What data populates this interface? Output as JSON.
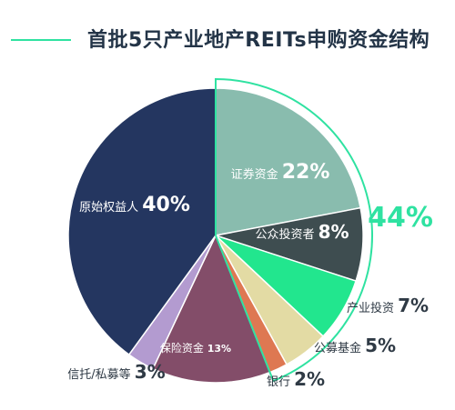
{
  "chart_data": {
    "type": "pie",
    "title": "首批5只产业地产REITs申购资金结构",
    "series": [
      {
        "label": "证券资金",
        "value_text": "22%",
        "value": 22,
        "color": "#89bcae",
        "label_color": "#ffffff"
      },
      {
        "label": "公众投资者",
        "value_text": "8%",
        "value": 8,
        "color": "#3e4d50",
        "label_color": "#ffffff"
      },
      {
        "label": "产业投资",
        "value_text": "7%",
        "value": 7,
        "color": "#22e68e",
        "label_color": "#2f3a45"
      },
      {
        "label": "公募基金",
        "value_text": "5%",
        "value": 5,
        "color": "#e3dba4",
        "label_color": "#2f3a45"
      },
      {
        "label": "银行",
        "value_text": "2%",
        "value": 2,
        "color": "#de7852",
        "label_color": "#2f3a45"
      },
      {
        "label": "保险资金",
        "value_text": "13%",
        "value": 13,
        "color": "#834d69",
        "label_color": "#ffffff"
      },
      {
        "label": "信托/私募等",
        "value_text": "3%",
        "value": 3,
        "color": "#b39bd0",
        "label_color": "#2f3a45"
      },
      {
        "label": "原始权益人",
        "value_text": "40%",
        "value": 40,
        "color": "#243660",
        "label_color": "#ffffff"
      }
    ],
    "highlight": {
      "text": "44%",
      "color": "#2fe2a1"
    }
  }
}
